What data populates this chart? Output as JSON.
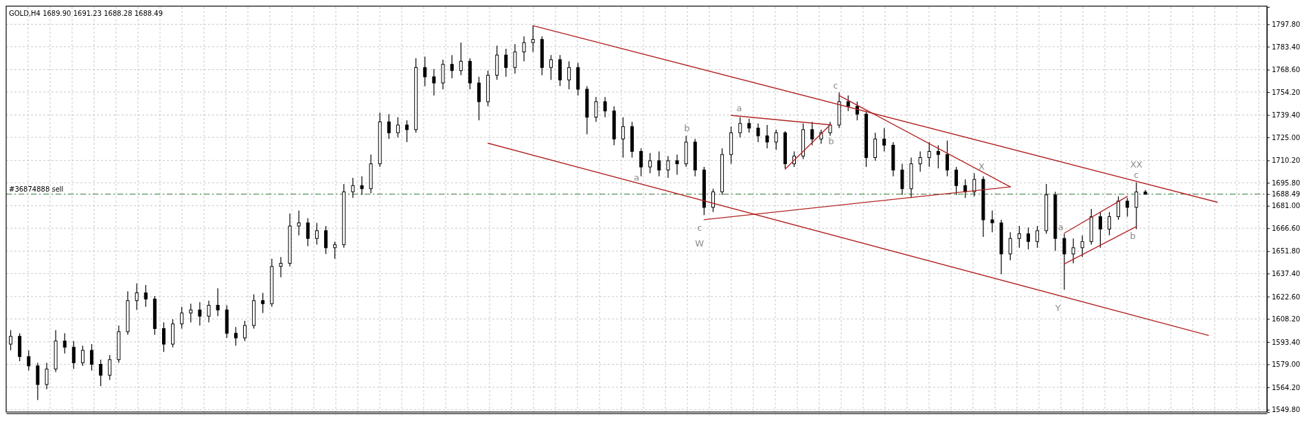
{
  "chart_data": {
    "type": "candlestick",
    "title": "GOLD,H4  1689.90 1691.23 1688.28 1688.49",
    "categories": [
      null,
      null,
      null,
      null,
      null,
      null,
      null,
      null,
      null,
      null,
      null,
      null,
      null,
      null,
      null,
      null,
      null,
      null,
      null,
      null,
      null,
      null,
      null,
      null,
      null,
      null,
      null,
      null,
      null,
      null,
      null,
      null,
      null,
      null,
      null,
      null,
      null,
      null,
      null,
      null,
      null,
      null,
      null,
      null,
      null,
      null,
      null,
      null,
      null,
      null,
      null,
      null,
      null,
      null,
      null,
      null,
      null,
      null,
      null,
      null,
      null,
      null,
      null,
      null,
      null,
      null,
      null,
      null,
      null,
      null,
      null,
      null,
      null,
      null,
      null,
      null,
      null,
      null,
      null,
      null,
      null,
      null,
      null,
      null,
      null,
      null,
      null,
      null,
      null,
      null,
      null,
      null,
      null,
      null,
      null,
      null,
      null,
      null,
      null,
      null,
      null,
      null,
      null,
      null,
      null,
      null,
      null,
      null,
      null,
      null,
      null,
      null,
      null,
      null,
      null,
      null,
      null,
      null,
      null,
      null,
      null,
      null,
      null,
      null,
      null,
      null,
      null,
      null,
      null,
      null,
      null,
      null,
      null,
      null,
      null,
      null,
      null,
      null,
      null,
      null
    ],
    "ohlc": [
      [
        1592,
        1601,
        1588,
        1597
      ],
      [
        1597,
        1599,
        1581,
        1584
      ],
      [
        1584,
        1588,
        1575,
        1578
      ],
      [
        1578,
        1580,
        1556,
        1566
      ],
      [
        1566,
        1580,
        1563,
        1576
      ],
      [
        1576,
        1601,
        1574,
        1594
      ],
      [
        1594,
        1599,
        1586,
        1590
      ],
      [
        1590,
        1594,
        1576,
        1580
      ],
      [
        1580,
        1591,
        1578,
        1588
      ],
      [
        1588,
        1592,
        1575,
        1579
      ],
      [
        1579,
        1582,
        1565,
        1572
      ],
      [
        1572,
        1585,
        1569,
        1582
      ],
      [
        1582,
        1604,
        1580,
        1600
      ],
      [
        1600,
        1626,
        1598,
        1620
      ],
      [
        1620,
        1631,
        1614,
        1625
      ],
      [
        1625,
        1630,
        1616,
        1621
      ],
      [
        1621,
        1623,
        1598,
        1602
      ],
      [
        1602,
        1606,
        1587,
        1592
      ],
      [
        1592,
        1608,
        1590,
        1605
      ],
      [
        1605,
        1616,
        1602,
        1612
      ],
      [
        1612,
        1618,
        1606,
        1614
      ],
      [
        1614,
        1619,
        1604,
        1610
      ],
      [
        1610,
        1620,
        1606,
        1617
      ],
      [
        1617,
        1628,
        1610,
        1614
      ],
      [
        1614,
        1617,
        1596,
        1599
      ],
      [
        1599,
        1603,
        1591,
        1596
      ],
      [
        1596,
        1607,
        1594,
        1604
      ],
      [
        1604,
        1624,
        1602,
        1620
      ],
      [
        1620,
        1625,
        1612,
        1618
      ],
      [
        1618,
        1647,
        1616,
        1642
      ],
      [
        1642,
        1648,
        1635,
        1644
      ],
      [
        1644,
        1676,
        1642,
        1668
      ],
      [
        1668,
        1678,
        1662,
        1670
      ],
      [
        1670,
        1673,
        1655,
        1660
      ],
      [
        1660,
        1670,
        1656,
        1665
      ],
      [
        1665,
        1668,
        1650,
        1654
      ],
      [
        1654,
        1658,
        1647,
        1656
      ],
      [
        1656,
        1695,
        1654,
        1690
      ],
      [
        1690,
        1699,
        1686,
        1694
      ],
      [
        1694,
        1700,
        1688,
        1692
      ],
      [
        1692,
        1714,
        1689,
        1708
      ],
      [
        1708,
        1741,
        1706,
        1735
      ],
      [
        1735,
        1740,
        1724,
        1728
      ],
      [
        1728,
        1738,
        1725,
        1733
      ],
      [
        1733,
        1736,
        1722,
        1730
      ],
      [
        1730,
        1776,
        1728,
        1770
      ],
      [
        1770,
        1777,
        1758,
        1764
      ],
      [
        1764,
        1769,
        1752,
        1760
      ],
      [
        1760,
        1775,
        1756,
        1772
      ],
      [
        1772,
        1778,
        1763,
        1768
      ],
      [
        1768,
        1786,
        1765,
        1774
      ],
      [
        1774,
        1776,
        1756,
        1760
      ],
      [
        1760,
        1764,
        1736,
        1748
      ],
      [
        1748,
        1768,
        1745,
        1765
      ],
      [
        1765,
        1784,
        1762,
        1778
      ],
      [
        1778,
        1782,
        1764,
        1770
      ],
      [
        1770,
        1785,
        1766,
        1780
      ],
      [
        1780,
        1790,
        1774,
        1786
      ],
      [
        1786,
        1797,
        1780,
        1788
      ],
      [
        1788,
        1790,
        1765,
        1770
      ],
      [
        1770,
        1778,
        1762,
        1775
      ],
      [
        1775,
        1778,
        1758,
        1762
      ],
      [
        1762,
        1774,
        1756,
        1770
      ],
      [
        1770,
        1773,
        1752,
        1756
      ],
      [
        1756,
        1758,
        1727,
        1738
      ],
      [
        1738,
        1751,
        1735,
        1748
      ],
      [
        1748,
        1751,
        1738,
        1742
      ],
      [
        1742,
        1745,
        1720,
        1724
      ],
      [
        1724,
        1738,
        1712,
        1732
      ],
      [
        1732,
        1735,
        1712,
        1716
      ],
      [
        1716,
        1718,
        1700,
        1706
      ],
      [
        1706,
        1715,
        1702,
        1710
      ],
      [
        1710,
        1716,
        1700,
        1704
      ],
      [
        1704,
        1713,
        1699,
        1710
      ],
      [
        1710,
        1714,
        1701,
        1708
      ],
      [
        1708,
        1726,
        1706,
        1722
      ],
      [
        1722,
        1724,
        1700,
        1704
      ],
      [
        1704,
        1706,
        1675,
        1680
      ],
      [
        1680,
        1692,
        1677,
        1690
      ],
      [
        1690,
        1718,
        1688,
        1714
      ],
      [
        1714,
        1732,
        1708,
        1728
      ],
      [
        1728,
        1738,
        1725,
        1734
      ],
      [
        1734,
        1737,
        1728,
        1731
      ],
      [
        1731,
        1734,
        1722,
        1726
      ],
      [
        1726,
        1733,
        1718,
        1722
      ],
      [
        1722,
        1730,
        1717,
        1728
      ],
      [
        1728,
        1729,
        1705,
        1708
      ],
      [
        1708,
        1716,
        1706,
        1713
      ],
      [
        1713,
        1734,
        1711,
        1730
      ],
      [
        1730,
        1735,
        1720,
        1724
      ],
      [
        1724,
        1730,
        1721,
        1728
      ],
      [
        1728,
        1735,
        1726,
        1733
      ],
      [
        1733,
        1754,
        1731,
        1748
      ],
      [
        1748,
        1752,
        1742,
        1745
      ],
      [
        1745,
        1748,
        1736,
        1740
      ],
      [
        1740,
        1742,
        1706,
        1712
      ],
      [
        1712,
        1728,
        1710,
        1724
      ],
      [
        1724,
        1731,
        1716,
        1720
      ],
      [
        1720,
        1722,
        1700,
        1704
      ],
      [
        1704,
        1708,
        1688,
        1692
      ],
      [
        1692,
        1712,
        1686,
        1708
      ],
      [
        1708,
        1716,
        1703,
        1712
      ],
      [
        1712,
        1722,
        1706,
        1716
      ],
      [
        1716,
        1720,
        1705,
        1714
      ],
      [
        1714,
        1723,
        1700,
        1704
      ],
      [
        1704,
        1706,
        1688,
        1694
      ],
      [
        1694,
        1698,
        1686,
        1690
      ],
      [
        1690,
        1702,
        1687,
        1698
      ],
      [
        1698,
        1700,
        1661,
        1672
      ],
      [
        1672,
        1678,
        1664,
        1670
      ],
      [
        1670,
        1672,
        1637,
        1650
      ],
      [
        1650,
        1664,
        1646,
        1660
      ],
      [
        1660,
        1668,
        1654,
        1663
      ],
      [
        1663,
        1667,
        1653,
        1658
      ],
      [
        1658,
        1668,
        1654,
        1665
      ],
      [
        1665,
        1695,
        1663,
        1688
      ],
      [
        1688,
        1690,
        1652,
        1660
      ],
      [
        1660,
        1663,
        1627,
        1650
      ],
      [
        1650,
        1660,
        1644,
        1654
      ],
      [
        1654,
        1662,
        1648,
        1658
      ],
      [
        1658,
        1679,
        1656,
        1674
      ],
      [
        1674,
        1677,
        1654,
        1666
      ],
      [
        1666,
        1677,
        1662,
        1674
      ],
      [
        1674,
        1687,
        1672,
        1684
      ],
      [
        1684,
        1686,
        1674,
        1680
      ],
      [
        1680,
        1696,
        1666,
        1689.9
      ],
      [
        1689.9,
        1691.23,
        1688.28,
        1688.49
      ],
      null,
      null,
      null,
      null,
      null,
      null,
      null,
      null,
      null,
      null,
      null,
      null,
      null
    ],
    "series": [
      {
        "type": "line",
        "color": "#b22222",
        "values": [
          null,
          null,
          null,
          null,
          null,
          null,
          null,
          null,
          null,
          null,
          null,
          null,
          null,
          null,
          null,
          null,
          null,
          null,
          null,
          null,
          null,
          null,
          null,
          null,
          null,
          null,
          null,
          null,
          null,
          null,
          null,
          null,
          null,
          null,
          null,
          null,
          null,
          null,
          null,
          null,
          null,
          null,
          null,
          null,
          null,
          null,
          null,
          null,
          null,
          null,
          null,
          null,
          null,
          null,
          null,
          null,
          null,
          null,
          1796.9,
          null,
          null,
          null,
          null,
          null,
          null,
          null,
          null,
          null,
          null,
          null,
          null,
          null,
          null,
          null,
          null,
          null,
          null,
          null,
          null,
          null,
          null,
          null,
          null,
          null,
          null,
          null,
          null,
          null,
          null,
          null,
          null,
          null,
          null,
          null,
          null,
          null,
          null,
          null,
          null,
          null,
          null,
          null,
          null,
          null,
          null,
          null,
          null,
          null,
          null,
          null,
          null,
          null,
          null,
          null,
          null,
          null,
          null,
          null,
          null,
          null,
          null,
          null,
          null,
          null,
          null,
          null,
          null,
          null,
          null,
          null,
          null,
          null,
          null,
          null,
          1683.3,
          null,
          null,
          null,
          null,
          null
        ]
      },
      {
        "type": "line",
        "color": "#b22222",
        "values": [
          null,
          null,
          null,
          null,
          null,
          null,
          null,
          null,
          null,
          null,
          null,
          null,
          null,
          null,
          null,
          null,
          null,
          null,
          null,
          null,
          null,
          null,
          null,
          null,
          null,
          null,
          null,
          null,
          null,
          null,
          null,
          null,
          null,
          null,
          null,
          null,
          null,
          null,
          null,
          null,
          null,
          null,
          null,
          null,
          null,
          null,
          null,
          null,
          null,
          null,
          null,
          null,
          null,
          1721.3,
          null,
          null,
          null,
          null,
          null,
          null,
          null,
          null,
          null,
          null,
          null,
          null,
          null,
          null,
          null,
          null,
          null,
          null,
          null,
          null,
          null,
          null,
          null,
          null,
          null,
          null,
          null,
          null,
          null,
          null,
          null,
          null,
          null,
          null,
          null,
          null,
          null,
          null,
          null,
          null,
          null,
          null,
          null,
          null,
          null,
          null,
          null,
          null,
          null,
          null,
          null,
          null,
          null,
          null,
          null,
          null,
          null,
          null,
          null,
          null,
          null,
          null,
          null,
          null,
          null,
          null,
          null,
          null,
          null,
          null,
          null,
          null,
          null,
          null,
          null,
          null,
          null,
          null,
          null,
          1597.6,
          null,
          null,
          null,
          null,
          null,
          null
        ]
      },
      {
        "type": "line",
        "color": "#b22222",
        "values": [
          null,
          null,
          null,
          null,
          null,
          null,
          null,
          null,
          null,
          null,
          null,
          null,
          null,
          null,
          null,
          null,
          null,
          null,
          null,
          null,
          null,
          null,
          null,
          null,
          null,
          null,
          null,
          null,
          null,
          null,
          null,
          null,
          null,
          null,
          null,
          null,
          null,
          null,
          null,
          null,
          null,
          null,
          null,
          null,
          null,
          null,
          null,
          null,
          null,
          null,
          null,
          null,
          null,
          null,
          null,
          null,
          null,
          null,
          null,
          null,
          null,
          null,
          null,
          null,
          null,
          null,
          null,
          null,
          null,
          null,
          null,
          null,
          null,
          null,
          null,
          null,
          null,
          1672.1,
          null,
          null,
          null,
          null,
          null,
          null,
          null,
          null,
          null,
          null,
          null,
          null,
          null,
          null,
          null,
          null,
          null,
          null,
          null,
          null,
          null,
          null,
          null,
          null,
          null,
          null,
          null,
          null,
          null,
          null,
          null,
          null,
          null,
          1693.2,
          null,
          null,
          null,
          null,
          null,
          null,
          null,
          null,
          null,
          null,
          null,
          null,
          null,
          null,
          null,
          null,
          null,
          null,
          null,
          null,
          null,
          null,
          null,
          null,
          null,
          null,
          null,
          null
        ]
      },
      {
        "type": "line",
        "color": "#b22222",
        "values": [
          null,
          null,
          null,
          null,
          null,
          null,
          null,
          null,
          null,
          null,
          null,
          null,
          null,
          null,
          null,
          null,
          null,
          null,
          null,
          null,
          null,
          null,
          null,
          null,
          null,
          null,
          null,
          null,
          null,
          null,
          null,
          null,
          null,
          null,
          null,
          null,
          null,
          null,
          null,
          null,
          null,
          null,
          null,
          null,
          null,
          null,
          null,
          null,
          null,
          null,
          null,
          null,
          null,
          null,
          null,
          null,
          null,
          null,
          null,
          null,
          null,
          null,
          null,
          null,
          null,
          null,
          null,
          null,
          null,
          null,
          null,
          null,
          null,
          null,
          null,
          null,
          null,
          null,
          null,
          null,
          null,
          null,
          null,
          null,
          null,
          null,
          null,
          null,
          null,
          null,
          null,
          null,
          1751.9,
          null,
          null,
          null,
          null,
          null,
          null,
          null,
          null,
          null,
          null,
          null,
          null,
          null,
          null,
          null,
          null,
          null,
          null,
          1693.2,
          null,
          null,
          null,
          null,
          null,
          null,
          null,
          null,
          null,
          null,
          null,
          null,
          null,
          null,
          null,
          null,
          null,
          null,
          null,
          null,
          null,
          null,
          null,
          null,
          null,
          null,
          null,
          null
        ]
      },
      {
        "type": "line",
        "color": "#b22222",
        "values": [
          null,
          null,
          null,
          null,
          null,
          null,
          null,
          null,
          null,
          null,
          null,
          null,
          null,
          null,
          null,
          null,
          null,
          null,
          null,
          null,
          null,
          null,
          null,
          null,
          null,
          null,
          null,
          null,
          null,
          null,
          null,
          null,
          null,
          null,
          null,
          null,
          null,
          null,
          null,
          null,
          null,
          null,
          null,
          null,
          null,
          null,
          null,
          null,
          null,
          null,
          null,
          null,
          null,
          null,
          null,
          null,
          null,
          null,
          null,
          null,
          null,
          null,
          null,
          null,
          null,
          null,
          null,
          null,
          null,
          null,
          null,
          null,
          null,
          null,
          null,
          null,
          null,
          null,
          null,
          null,
          1739.2,
          null,
          null,
          null,
          null,
          null,
          null,
          null,
          null,
          null,
          null,
          1733.1,
          null,
          null,
          null,
          null,
          null,
          null,
          null,
          null,
          null,
          null,
          null,
          null,
          null,
          null,
          null,
          null,
          null,
          null,
          null,
          null,
          null,
          null,
          null,
          null,
          null,
          null,
          null,
          null,
          null,
          null,
          null,
          null,
          null,
          null,
          null,
          null,
          null,
          null,
          null,
          null,
          null,
          null,
          null,
          null,
          null,
          null,
          null,
          null
        ]
      },
      {
        "type": "line",
        "color": "#b22222",
        "values": [
          null,
          null,
          null,
          null,
          null,
          null,
          null,
          null,
          null,
          null,
          null,
          null,
          null,
          null,
          null,
          null,
          null,
          null,
          null,
          null,
          null,
          null,
          null,
          null,
          null,
          null,
          null,
          null,
          null,
          null,
          null,
          null,
          null,
          null,
          null,
          null,
          null,
          null,
          null,
          null,
          null,
          null,
          null,
          null,
          null,
          null,
          null,
          null,
          null,
          null,
          null,
          null,
          null,
          null,
          null,
          null,
          null,
          null,
          null,
          null,
          null,
          null,
          null,
          null,
          null,
          null,
          null,
          null,
          null,
          null,
          null,
          null,
          null,
          null,
          null,
          null,
          null,
          null,
          null,
          null,
          null,
          null,
          null,
          null,
          null,
          null,
          1704.6,
          null,
          null,
          null,
          null,
          1733.1,
          null,
          null,
          null,
          null,
          null,
          null,
          null,
          null,
          null,
          null,
          null,
          null,
          null,
          null,
          null,
          null,
          null,
          null,
          null,
          null,
          null,
          null,
          null,
          null,
          null,
          null,
          null,
          null,
          null,
          null,
          null,
          null,
          null,
          null,
          null,
          null,
          null,
          null,
          null,
          null,
          null,
          null,
          null,
          null,
          null,
          null,
          null,
          null
        ]
      },
      {
        "type": "line",
        "color": "#b22222",
        "values": [
          null,
          null,
          null,
          null,
          null,
          null,
          null,
          null,
          null,
          null,
          null,
          null,
          null,
          null,
          null,
          null,
          null,
          null,
          null,
          null,
          null,
          null,
          null,
          null,
          null,
          null,
          null,
          null,
          null,
          null,
          null,
          null,
          null,
          null,
          null,
          null,
          null,
          null,
          null,
          null,
          null,
          null,
          null,
          null,
          null,
          null,
          null,
          null,
          null,
          null,
          null,
          null,
          null,
          null,
          null,
          null,
          null,
          null,
          null,
          null,
          null,
          null,
          null,
          null,
          null,
          null,
          null,
          null,
          null,
          null,
          null,
          null,
          null,
          null,
          null,
          null,
          null,
          null,
          null,
          null,
          null,
          null,
          null,
          null,
          null,
          null,
          null,
          null,
          null,
          null,
          null,
          null,
          null,
          null,
          null,
          null,
          null,
          null,
          null,
          null,
          null,
          null,
          null,
          null,
          null,
          null,
          null,
          null,
          null,
          null,
          null,
          null,
          null,
          null,
          null,
          null,
          null,
          1663.4,
          null,
          null,
          null,
          null,
          null,
          null,
          1687.1,
          null,
          null,
          null,
          null,
          null,
          null,
          null,
          null,
          null,
          null,
          null,
          null,
          null,
          null,
          null
        ]
      },
      {
        "type": "line",
        "color": "#b22222",
        "values": [
          null,
          null,
          null,
          null,
          null,
          null,
          null,
          null,
          null,
          null,
          null,
          null,
          null,
          null,
          null,
          null,
          null,
          null,
          null,
          null,
          null,
          null,
          null,
          null,
          null,
          null,
          null,
          null,
          null,
          null,
          null,
          null,
          null,
          null,
          null,
          null,
          null,
          null,
          null,
          null,
          null,
          null,
          null,
          null,
          null,
          null,
          null,
          null,
          null,
          null,
          null,
          null,
          null,
          null,
          null,
          null,
          null,
          null,
          null,
          null,
          null,
          null,
          null,
          null,
          null,
          null,
          null,
          null,
          null,
          null,
          null,
          null,
          null,
          null,
          null,
          null,
          null,
          null,
          null,
          null,
          null,
          null,
          null,
          null,
          null,
          null,
          null,
          null,
          null,
          null,
          null,
          null,
          null,
          null,
          null,
          null,
          null,
          null,
          null,
          null,
          null,
          null,
          null,
          null,
          null,
          null,
          null,
          null,
          null,
          null,
          null,
          null,
          null,
          null,
          null,
          null,
          null,
          1643.6,
          null,
          null,
          null,
          null,
          null,
          null,
          null,
          1667.7,
          null,
          null,
          null,
          null,
          null,
          null,
          null,
          null,
          null,
          null,
          null,
          null,
          null,
          null
        ]
      }
    ],
    "ylim": [
      1548.3,
      1809.0
    ],
    "yticks": [
      {
        "value": 1549.8,
        "label": "1549.80"
      },
      {
        "value": 1564.2,
        "label": "1564.20"
      },
      {
        "value": 1579.0,
        "label": "1579.00"
      },
      {
        "value": 1593.4,
        "label": "1593.40"
      },
      {
        "value": 1608.2,
        "label": "1608.20"
      },
      {
        "value": 1622.6,
        "label": "1622.60"
      },
      {
        "value": 1637.4,
        "label": "1637.40"
      },
      {
        "value": 1651.8,
        "label": "1651.80"
      },
      {
        "value": 1666.6,
        "label": "1666.60"
      },
      {
        "value": 1681.0,
        "label": "1681.00"
      },
      {
        "value": 1688.49,
        "label": "1688.49"
      },
      {
        "value": 1695.8,
        "label": "1695.80"
      },
      {
        "value": 1710.2,
        "label": "1710.20"
      },
      {
        "value": 1725.0,
        "label": "1725.00"
      },
      {
        "value": 1739.4,
        "label": "1739.40"
      },
      {
        "value": 1754.2,
        "label": "1754.20"
      },
      {
        "value": 1768.6,
        "label": "1768.60"
      },
      {
        "value": 1783.4,
        "label": "1783.40"
      },
      {
        "value": 1797.8,
        "label": "1797.80"
      }
    ],
    "grid": true,
    "ref_lines": [
      {
        "axis": "y",
        "value": 1688.49,
        "label": "#36874888 sell",
        "color": "#2e7d32",
        "line_style": "dashdot"
      }
    ],
    "annotations": [
      "a",
      "b",
      "c",
      "W",
      "a",
      "b",
      "c",
      "X",
      "a",
      "Y",
      "XX",
      "c",
      "b"
    ]
  }
}
